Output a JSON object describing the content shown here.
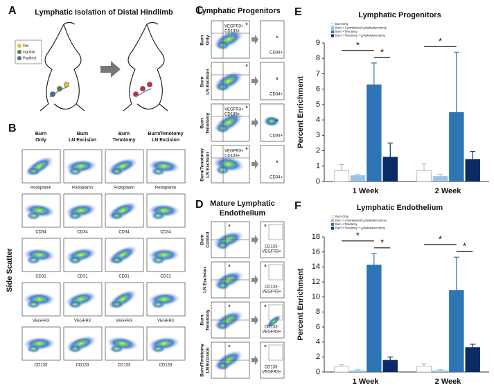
{
  "panel_labels": [
    "A",
    "B",
    "C",
    "D",
    "E",
    "F"
  ],
  "panel_a": {
    "title": "Lymphatic Isolation of Distal Hindlimb",
    "legend": [
      "Iliac",
      "Inguinal",
      "Popliteal"
    ]
  },
  "panel_b": {
    "columns": [
      [
        "Burn",
        "Only"
      ],
      [
        "Burn",
        "LN Excision"
      ],
      [
        "Burn",
        "Tenotomy"
      ],
      [
        "Burn/Tenotomy",
        "LN Excision"
      ]
    ],
    "markers": [
      "Podoplanin",
      "CD34",
      "CD31",
      "VEGFR3",
      "CD133"
    ],
    "y_label": "Side Scatter"
  },
  "panel_c": {
    "title": "Lymphatic Progenitors",
    "rows": [
      {
        "label": [
          "Burn",
          "Only"
        ],
        "gate": [
          "VEGFR3+",
          "CD133+"
        ],
        "result": "CD34+",
        "marker": "*"
      },
      {
        "label": [
          "Burn",
          "LN Excision"
        ],
        "result": "CD34+",
        "marker": "*"
      },
      {
        "label": [
          "Burn",
          "Tenotomy"
        ],
        "gate": [
          "VEGFR3+",
          "CD133+"
        ],
        "result": "CD34+",
        "marker": "*"
      },
      {
        "label": [
          "Burn/Tenotomy",
          "LN Excision"
        ],
        "gate": [
          "VEGFR3+",
          "CD133+"
        ],
        "result": "CD34+",
        "marker": "*"
      }
    ]
  },
  "panel_d": {
    "title": [
      "Mature Lymphatic",
      "Endothelium"
    ],
    "rows": [
      {
        "label": [
          "Burn",
          "Control"
        ],
        "result": [
          "CD133-",
          "VEGFR3+"
        ],
        "marker": "*"
      },
      {
        "label": [
          "LN Excision"
        ],
        "result": [
          "CD133-",
          "VEGFR3+"
        ],
        "marker": "*"
      },
      {
        "label": [
          "Burn",
          "Tenotomy"
        ],
        "result": [
          "CD133-",
          "VEGFR3+"
        ],
        "marker": "*"
      },
      {
        "label": [
          "Burn/Tenotomy",
          "LN Excision"
        ],
        "result": [
          "CD133-",
          "VEGFR3+"
        ],
        "marker": "*"
      }
    ]
  },
  "chart_data": [
    {
      "type": "bar",
      "title": "Lymphatic Progenitors",
      "y_label": "Percent Enrichment",
      "categories": [
        "1 Week",
        "2 Week"
      ],
      "series": [
        {
          "name": "Burn Only",
          "color": "#ffffff",
          "values": [
            0.7,
            0.7
          ],
          "errors": [
            0.4,
            0.45
          ]
        },
        {
          "name": "Burn + Contralateral Lymphadenectomy",
          "color": "#9dc3e6",
          "values": [
            0.4,
            0.35
          ],
          "errors": [
            0.05,
            0.1
          ]
        },
        {
          "name": "Burn + Tenotomy",
          "color": "#2e75b6",
          "values": [
            6.3,
            4.5
          ],
          "errors": [
            1.4,
            3.9
          ]
        },
        {
          "name": "Burn + Tenotomy + Lymphadenectomy",
          "color": "#0b2a66",
          "values": [
            1.6,
            1.45
          ],
          "errors": [
            0.9,
            0.5
          ]
        }
      ],
      "ylim": [
        0,
        9
      ],
      "yticks": [
        0,
        1,
        2,
        3,
        4,
        5,
        6,
        7,
        8,
        9
      ],
      "annotations": [
        {
          "text": "*",
          "category": "1 Week",
          "between": [
            "Burn Only",
            "Burn + Tenotomy"
          ]
        },
        {
          "text": "*",
          "category": "1 Week",
          "between": [
            "Burn + Tenotomy",
            "Burn + Tenotomy + Lymphadenectomy"
          ]
        },
        {
          "text": "*",
          "category": "2 Week",
          "between": [
            "Burn Only",
            "Burn + Tenotomy"
          ]
        }
      ]
    },
    {
      "type": "bar",
      "title": "Lymphatic Endothelium",
      "y_label": "Percent Enrichment",
      "categories": [
        "1 Week",
        "2 Week"
      ],
      "series": [
        {
          "name": "Burn Only",
          "color": "#ffffff",
          "values": [
            0.75,
            0.8
          ],
          "errors": [
            0.2,
            0.3
          ]
        },
        {
          "name": "Burn + Contralateral Lymphadenectomy",
          "color": "#9dc3e6",
          "values": [
            0.2,
            0.2
          ],
          "errors": [
            0.1,
            0.1
          ]
        },
        {
          "name": "Burn + Tenotomy",
          "color": "#2e75b6",
          "values": [
            14.3,
            10.9
          ],
          "errors": [
            1.5,
            4.4
          ]
        },
        {
          "name": "Burn + Tenotomy + Lymphadenectomy",
          "color": "#0b2a66",
          "values": [
            1.6,
            3.3
          ],
          "errors": [
            0.4,
            0.4
          ]
        }
      ],
      "ylim": [
        0,
        18
      ],
      "yticks": [
        0,
        2,
        4,
        6,
        8,
        10,
        12,
        14,
        16,
        18
      ],
      "annotations": [
        {
          "text": "*",
          "category": "1 Week",
          "between": [
            "Burn Only",
            "Burn + Tenotomy"
          ]
        },
        {
          "text": "*",
          "category": "1 Week",
          "between": [
            "Burn + Tenotomy",
            "Burn + Tenotomy + Lymphadenectomy"
          ]
        },
        {
          "text": "*",
          "category": "2 Week",
          "between": [
            "Burn Only",
            "Burn + Tenotomy"
          ]
        },
        {
          "text": "*",
          "category": "2 Week",
          "between": [
            "Burn + Tenotomy",
            "Burn + Tenotomy + Lymphadenectomy"
          ]
        }
      ]
    }
  ]
}
